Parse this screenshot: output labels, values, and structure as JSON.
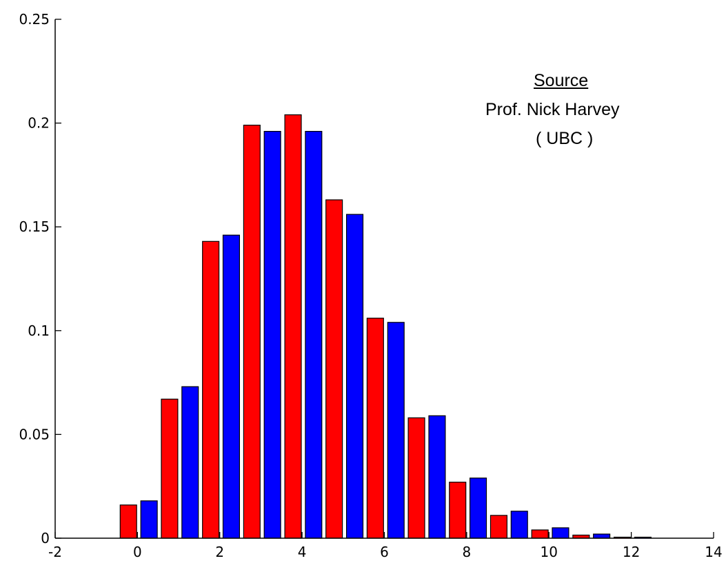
{
  "chart_data": {
    "type": "bar",
    "x": [
      0,
      1,
      2,
      3,
      4,
      5,
      6,
      7,
      8,
      9,
      10,
      11,
      12
    ],
    "series": [
      {
        "color": "#ff0000",
        "values": [
          0.016,
          0.067,
          0.143,
          0.199,
          0.204,
          0.163,
          0.106,
          0.058,
          0.027,
          0.011,
          0.004,
          0.0015,
          0.0005
        ]
      },
      {
        "color": "#0000ff",
        "values": [
          0.018,
          0.073,
          0.146,
          0.196,
          0.196,
          0.156,
          0.104,
          0.059,
          0.029,
          0.013,
          0.005,
          0.002,
          0.0005
        ]
      }
    ],
    "xlim": [
      -2,
      14
    ],
    "ylim": [
      0,
      0.25
    ],
    "xticks": [
      -2,
      0,
      2,
      4,
      6,
      8,
      10,
      12,
      14
    ],
    "yticks": [
      0,
      0.05,
      0.1,
      0.15,
      0.2,
      0.25
    ],
    "xtick_labels": [
      "-2",
      "0",
      "2",
      "4",
      "6",
      "8",
      "10",
      "12",
      "14"
    ],
    "ytick_labels": [
      "0",
      "0.05",
      "0.1",
      "0.15",
      "0.2",
      "0.25"
    ],
    "grid": false,
    "annotation": {
      "heading": "Source",
      "lines": [
        "Prof. Nick Harvey",
        "( UBC )"
      ]
    }
  }
}
